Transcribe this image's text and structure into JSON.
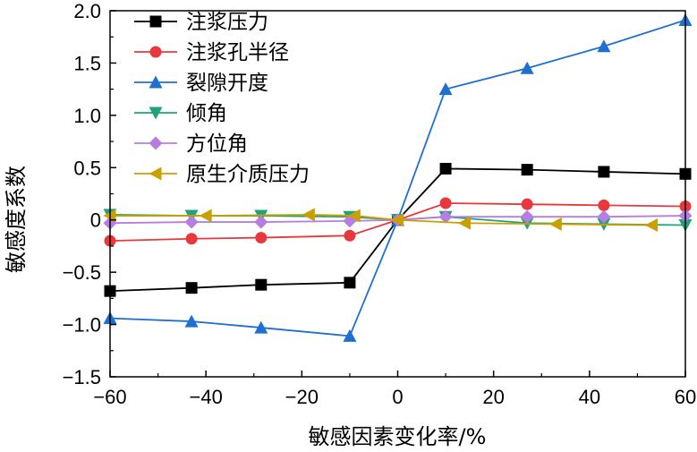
{
  "chart_data": {
    "type": "line",
    "xlabel": "敏感因素变化率/%",
    "ylabel": "敏感度系数",
    "xlim": [
      -60,
      60
    ],
    "ylim": [
      -1.5,
      2.0
    ],
    "xticks": [
      -60,
      -40,
      -20,
      0,
      20,
      40,
      60
    ],
    "yticks": [
      -1.5,
      -1.0,
      -0.5,
      0,
      0.5,
      1.0,
      1.5,
      2.0
    ],
    "xtick_labels": [
      "−60",
      "−40",
      "−20",
      "0",
      "20",
      "40",
      "60"
    ],
    "ytick_labels": [
      "−1.5",
      "−1.0",
      "−0.5",
      "0",
      "0.5",
      "1.0",
      "1.5",
      "2.0"
    ],
    "grid": false,
    "legend_position": "top-left",
    "series": [
      {
        "name": "注浆压力",
        "color": "#000000",
        "marker": "square",
        "x": [
          -60,
          -43,
          -28.5,
          -10,
          0,
          10,
          27,
          43,
          60
        ],
        "y": [
          -0.68,
          -0.65,
          -0.62,
          -0.6,
          0,
          0.49,
          0.48,
          0.46,
          0.44
        ]
      },
      {
        "name": "注浆孔半径",
        "color": "#e8383d",
        "marker": "circle",
        "x": [
          -60,
          -43,
          -28.5,
          -10,
          0,
          10,
          27,
          43,
          60
        ],
        "y": [
          -0.2,
          -0.18,
          -0.17,
          -0.15,
          0,
          0.16,
          0.15,
          0.14,
          0.13
        ]
      },
      {
        "name": "裂隙开度",
        "color": "#1f6fd1",
        "marker": "triangle-up",
        "x": [
          -60,
          -43,
          -28.5,
          -10,
          0,
          10,
          27,
          43,
          60
        ],
        "y": [
          -0.94,
          -0.97,
          -1.03,
          -1.11,
          0,
          1.25,
          1.45,
          1.66,
          1.91
        ]
      },
      {
        "name": "倾角",
        "color": "#1fa37a",
        "marker": "triangle-down",
        "x": [
          -60,
          -43,
          -28.5,
          -10,
          0,
          10,
          27,
          43,
          60
        ],
        "y": [
          0.05,
          0.04,
          0.04,
          0.03,
          0,
          0.03,
          -0.03,
          -0.04,
          -0.05
        ]
      },
      {
        "name": "方位角",
        "color": "#b57ee0",
        "marker": "diamond",
        "x": [
          -60,
          -43,
          -28.5,
          -10,
          0,
          10,
          27,
          43,
          60
        ],
        "y": [
          -0.03,
          -0.02,
          -0.02,
          -0.01,
          0,
          0.03,
          0.03,
          0.03,
          0.04
        ]
      },
      {
        "name": "原生介质压力",
        "color": "#c9a000",
        "marker": "triangle-left",
        "x": [
          -60,
          -40,
          -18.5,
          -9,
          0,
          14,
          33,
          53
        ],
        "y": [
          0.04,
          0.04,
          0.05,
          0.04,
          0,
          -0.03,
          -0.04,
          -0.05
        ]
      }
    ]
  }
}
